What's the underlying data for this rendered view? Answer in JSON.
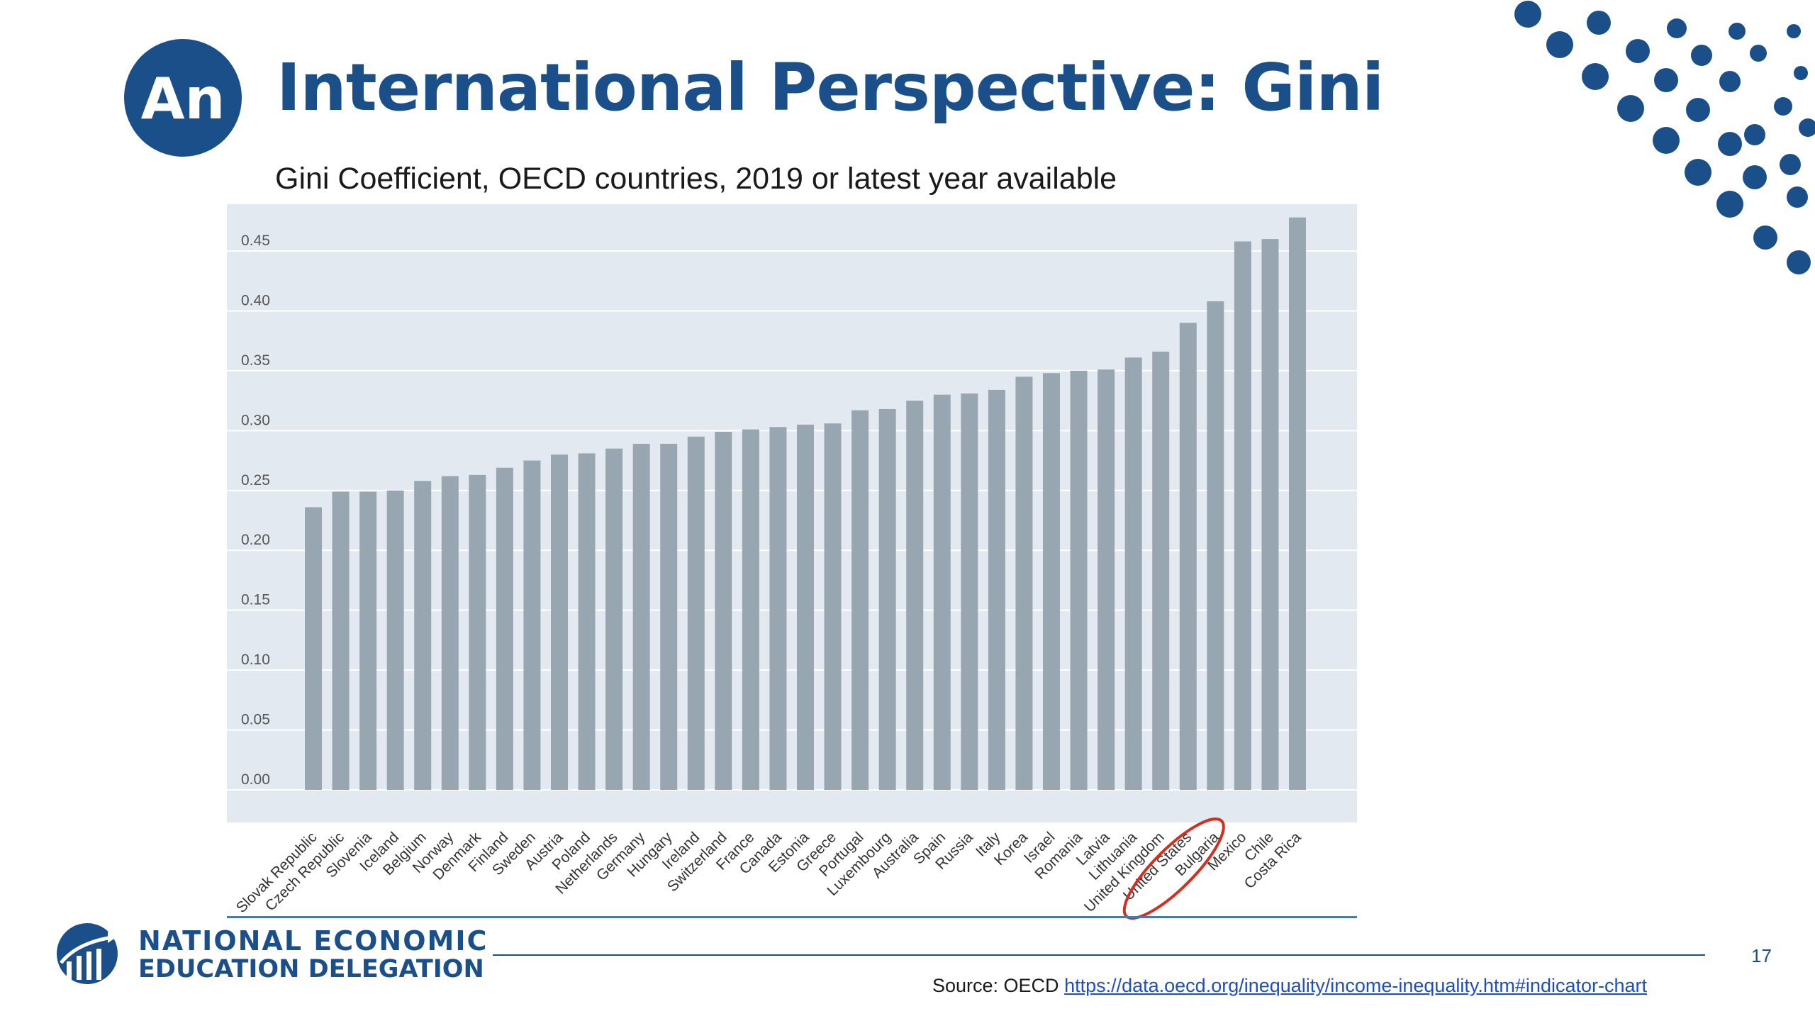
{
  "slide": {
    "title": "International Perspective: Gini",
    "badge_text": "An",
    "subtitle": "Gini Coefficient, OECD countries, 2019 or latest year available",
    "source_label": "Source: OECD ",
    "source_link": "https://data.oecd.org/inequality/income-inequality.htm#indicator-chart",
    "page_number": "17",
    "org_name_line1": "NATIONAL ECONOMIC",
    "org_name_line2": "EDUCATION DELEGATION"
  },
  "colors": {
    "brand_blue": "#1b4f8a",
    "plot_background": "#e3e9f0",
    "bar": "#97a6b0",
    "highlight_circle": "#d32f1f",
    "link": "#1f4fbf"
  },
  "chart_data": {
    "type": "bar",
    "title": "Gini Coefficient, OECD countries, 2019 or latest year available",
    "xlabel": "",
    "ylabel": "",
    "ylim": [
      0,
      0.48
    ],
    "grid": true,
    "legend": "none",
    "y_ticks": [
      "0.00",
      "0.05",
      "0.10",
      "0.15",
      "0.20",
      "0.25",
      "0.30",
      "0.35",
      "0.40",
      "0.45"
    ],
    "categories": [
      "Slovak Republic",
      "Czech Republic",
      "Slovenia",
      "Iceland",
      "Belgium",
      "Norway",
      "Denmark",
      "Finland",
      "Sweden",
      "Austria",
      "Poland",
      "Netherlands",
      "Germany",
      "Hungary",
      "Ireland",
      "Switzerland",
      "France",
      "Canada",
      "Estonia",
      "Greece",
      "Portugal",
      "Luxembourg",
      "Australia",
      "Spain",
      "Russia",
      "Italy",
      "Korea",
      "Israel",
      "Romania",
      "Latvia",
      "Lithuania",
      "United Kingdom",
      "United States",
      "Bulgaria",
      "Mexico",
      "Chile",
      "Costa Rica"
    ],
    "values": [
      0.236,
      0.249,
      0.249,
      0.25,
      0.258,
      0.262,
      0.263,
      0.269,
      0.275,
      0.28,
      0.281,
      0.285,
      0.289,
      0.289,
      0.295,
      0.299,
      0.301,
      0.303,
      0.305,
      0.306,
      0.317,
      0.318,
      0.325,
      0.33,
      0.331,
      0.334,
      0.345,
      0.348,
      0.35,
      0.351,
      0.361,
      0.366,
      0.39,
      0.408,
      0.458,
      0.46,
      0.478
    ],
    "highlighted_category": "United States"
  }
}
